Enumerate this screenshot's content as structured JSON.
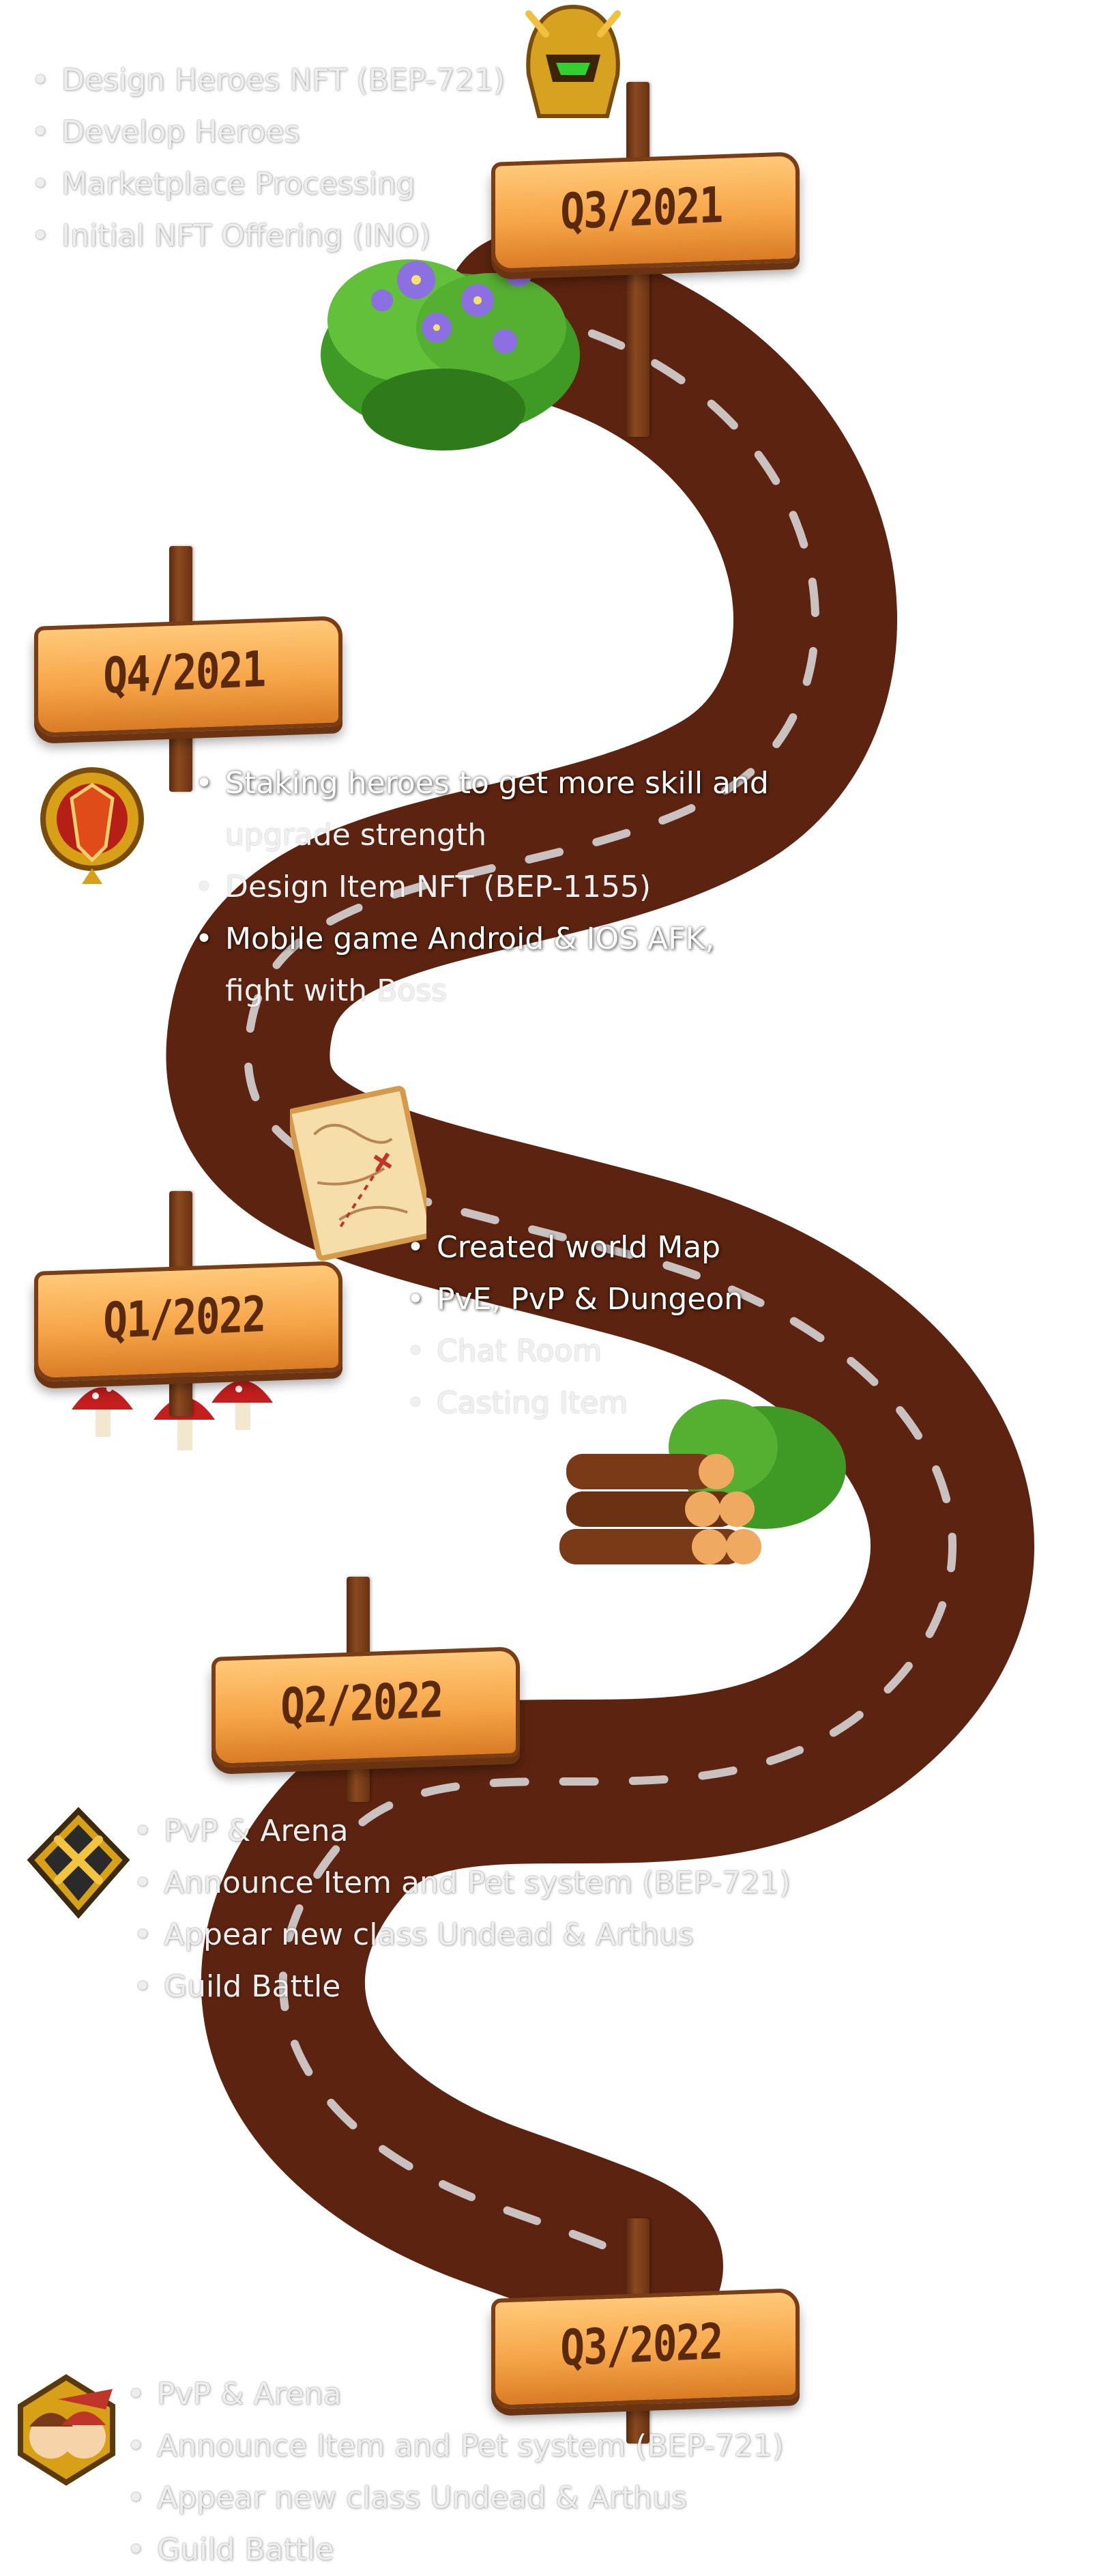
{
  "milestones": [
    {
      "label": "Q3/2021",
      "items": [
        "Design Heroes NFT (BEP-721)",
        "Develop Heroes",
        "Marketplace   Processing",
        "Initial NFT Offering (INO)"
      ],
      "icon": "golden-helmet-icon"
    },
    {
      "label": "Q4/2021",
      "items": [
        "Staking heroes to get more skill and",
        "upgrade strength",
        "Design Item NFT (BEP-1155)",
        "Mobile game Android & IOS AFK,",
        "fight with Boss"
      ],
      "icon": "shield-emblem-icon"
    },
    {
      "label": "Q1/2022",
      "items": [
        "Created world Map",
        "PvE, PvP &  Dungeon",
        "Chat Room",
        "Casting Item"
      ],
      "icon": "treasure-map-icon"
    },
    {
      "label": "Q2/2022",
      "items": [
        "PvP & Arena",
        "Announce Item and Pet system (BEP-721)",
        "Appear new class Undead & Arthus",
        "Guild Battle"
      ],
      "icon": "crossed-swords-icon"
    },
    {
      "label": "Q3/2022",
      "items": [
        "PvP & Arena",
        "Announce Item and Pet system (BEP-721)",
        "Appear new class Undead & Arthus",
        "Guild Battle"
      ],
      "icon": "heroes-portrait-icon"
    }
  ],
  "colors": {
    "road": "#5c2410",
    "road_line": "#c9c2c0",
    "sign": "#f6a548",
    "sign_text": "#5b2a0d"
  }
}
